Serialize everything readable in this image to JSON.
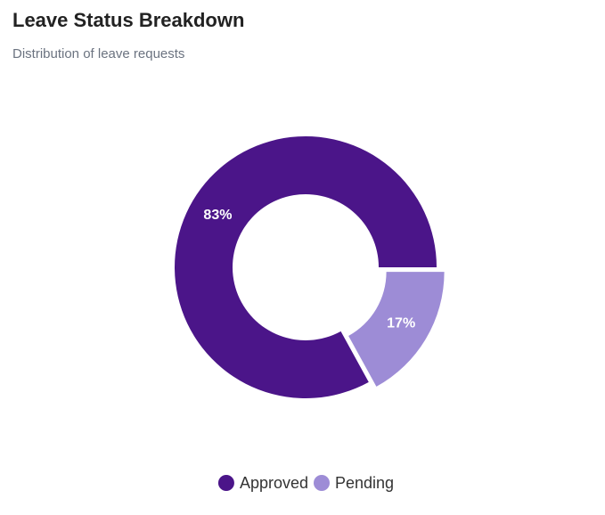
{
  "chart_data": {
    "type": "donut",
    "title": "Leave Status Breakdown",
    "subtitle": "Distribution of leave requests",
    "categories": [
      "Approved",
      "Pending"
    ],
    "values": [
      83,
      17
    ],
    "value_labels": [
      "83%",
      "17%"
    ],
    "colors": [
      "#4b1589",
      "#9d8cd6"
    ],
    "legend": "bottom",
    "exploded": [
      false,
      true
    ]
  }
}
